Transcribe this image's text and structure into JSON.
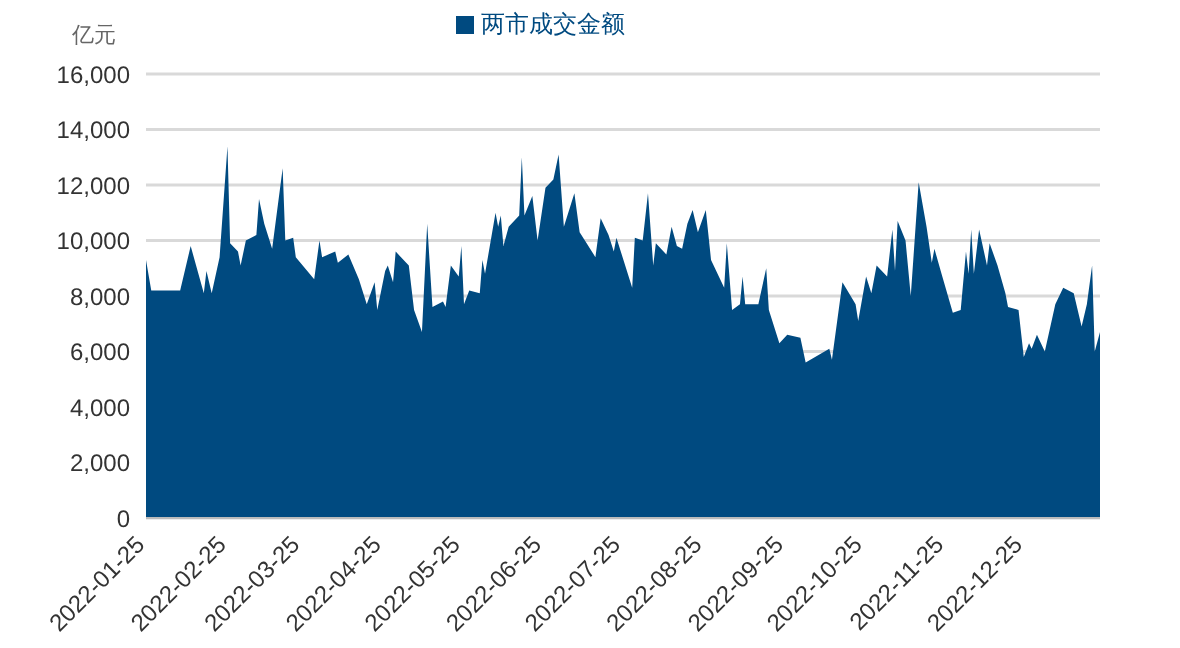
{
  "chart_data": {
    "type": "area",
    "ylabel": "亿元",
    "legend": "top",
    "grid": "y",
    "series": [
      {
        "name": "两市成交金额",
        "color": "#004a80",
        "x": [
          "2022-01-25",
          "2022-01-27",
          "2022-02-07",
          "2022-02-11",
          "2022-02-16",
          "2022-02-17",
          "2022-02-19",
          "2022-02-22",
          "2022-02-25",
          "2022-02-26",
          "2022-03-01",
          "2022-03-02",
          "2022-03-04",
          "2022-03-08",
          "2022-03-09",
          "2022-03-11",
          "2022-03-14",
          "2022-03-18",
          "2022-03-19",
          "2022-03-22",
          "2022-03-23",
          "2022-03-30",
          "2022-04-01",
          "2022-04-02",
          "2022-04-07",
          "2022-04-08",
          "2022-04-12",
          "2022-04-16",
          "2022-04-19",
          "2022-04-22",
          "2022-04-23",
          "2022-04-26",
          "2022-04-27",
          "2022-04-29",
          "2022-04-30",
          "2022-05-05",
          "2022-05-07",
          "2022-05-10",
          "2022-05-12",
          "2022-05-14",
          "2022-05-18",
          "2022-05-19",
          "2022-05-21",
          "2022-05-24",
          "2022-05-25",
          "2022-05-26",
          "2022-05-28",
          "2022-06-01",
          "2022-06-02",
          "2022-06-03",
          "2022-06-07",
          "2022-06-08",
          "2022-06-09",
          "2022-06-10",
          "2022-06-12",
          "2022-06-16",
          "2022-06-17",
          "2022-06-18",
          "2022-06-21",
          "2022-06-23",
          "2022-06-26",
          "2022-06-29",
          "2022-07-01",
          "2022-07-03",
          "2022-07-07",
          "2022-07-09",
          "2022-07-11",
          "2022-07-15",
          "2022-07-17",
          "2022-07-20",
          "2022-07-22",
          "2022-07-23",
          "2022-07-29",
          "2022-07-30",
          "2022-08-02",
          "2022-08-04",
          "2022-08-06",
          "2022-08-07",
          "2022-08-11",
          "2022-08-13",
          "2022-08-15",
          "2022-08-17",
          "2022-08-19",
          "2022-08-21",
          "2022-08-23",
          "2022-08-26",
          "2022-08-28",
          "2022-09-02",
          "2022-09-03",
          "2022-09-05",
          "2022-09-08",
          "2022-09-09",
          "2022-09-10",
          "2022-09-15",
          "2022-09-18",
          "2022-09-19",
          "2022-09-23",
          "2022-09-26",
          "2022-10-01",
          "2022-10-03",
          "2022-10-12",
          "2022-10-13",
          "2022-10-15",
          "2022-10-17",
          "2022-10-22",
          "2022-10-23",
          "2022-10-26",
          "2022-10-28",
          "2022-10-30",
          "2022-11-03",
          "2022-11-05",
          "2022-11-06",
          "2022-11-07",
          "2022-11-10",
          "2022-11-12",
          "2022-11-15",
          "2022-11-18",
          "2022-11-20",
          "2022-11-21",
          "2022-11-24",
          "2022-11-28",
          "2022-12-01",
          "2022-12-03",
          "2022-12-04",
          "2022-12-05",
          "2022-12-06",
          "2022-12-08",
          "2022-12-11",
          "2022-12-12",
          "2022-12-15",
          "2022-12-18",
          "2022-12-19",
          "2022-12-23",
          "2022-12-25",
          "2022-12-27",
          "2022-12-28",
          "2022-12-30",
          "2023-01-02",
          "2023-01-06",
          "2023-01-09",
          "2023-01-13",
          "2023-01-16",
          "2023-01-18",
          "2023-01-20",
          "2023-01-21",
          "2023-01-23"
        ],
        "values": [
          9300,
          8200,
          8200,
          9800,
          8100,
          8900,
          8100,
          9400,
          13400,
          9900,
          9600,
          9100,
          10000,
          10200,
          11500,
          10600,
          9700,
          12600,
          10000,
          10100,
          9400,
          8600,
          10000,
          9400,
          9600,
          9200,
          9500,
          8600,
          7700,
          8500,
          7500,
          8900,
          9100,
          8500,
          9600,
          9100,
          7500,
          6700,
          10600,
          7600,
          7800,
          7600,
          9100,
          8700,
          9800,
          7700,
          8200,
          8100,
          9300,
          8800,
          11000,
          10500,
          10900,
          9800,
          10500,
          10900,
          13000,
          10900,
          11600,
          10000,
          11900,
          12200,
          13100,
          10500,
          11700,
          10300,
          10000,
          9400,
          10800,
          10200,
          9600,
          10100,
          8300,
          10100,
          10000,
          11700,
          9100,
          9900,
          9500,
          10500,
          9800,
          9700,
          10600,
          11100,
          10300,
          11100,
          9300,
          8300,
          9900,
          7500,
          7700,
          8700,
          7700,
          7700,
          9000,
          7500,
          6300,
          6600,
          6500,
          5600,
          6100,
          5700,
          7100,
          8500,
          7700,
          7100,
          8700,
          8100,
          9100,
          8700,
          10400,
          8900,
          10700,
          10000,
          8000,
          12100,
          10500,
          9200,
          9700,
          8700,
          7400,
          7500,
          9600,
          8800,
          10400,
          8800,
          10400,
          9100,
          9900,
          9100,
          8100,
          7600,
          7500,
          5800,
          6300,
          6100,
          6600,
          6000,
          7700,
          8300,
          8100,
          6900,
          7700,
          9100,
          6000,
          6700
        ]
      }
    ],
    "xlim": [
      "2022-01-25",
      "2023-01-23"
    ],
    "xticks": [
      "2022-01-25",
      "2022-02-25",
      "2022-03-25",
      "2022-04-25",
      "2022-05-25",
      "2022-06-25",
      "2022-07-25",
      "2022-08-25",
      "2022-09-25",
      "2022-10-25",
      "2022-11-25",
      "2022-12-25"
    ],
    "ylim": [
      0,
      16000
    ],
    "yticks": [
      0,
      {
        "value": 2000,
        "label": "2,000"
      },
      {
        "value": 4000,
        "label": "4,000"
      },
      {
        "value": 6000,
        "label": "6,000"
      },
      {
        "value": 8000,
        "label": "8,000"
      },
      {
        "value": 10000,
        "label": "10,000"
      },
      {
        "value": 12000,
        "label": "12,000"
      },
      {
        "value": 14000,
        "label": "14,000"
      },
      {
        "value": 16000,
        "label": "16,000"
      }
    ]
  }
}
